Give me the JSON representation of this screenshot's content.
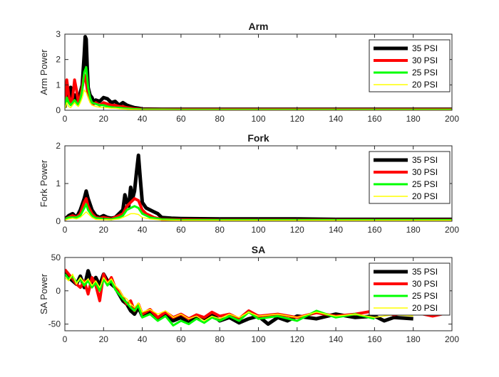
{
  "colors": {
    "35 PSI": "#000000",
    "30 PSI": "#ff0000",
    "25 PSI": "#00ff00",
    "20 PSI": "#ffff00"
  },
  "chart_data": [
    {
      "type": "line",
      "title": "Arm",
      "xlabel": "",
      "ylabel": "Arm Power",
      "xlim": [
        0,
        200
      ],
      "ylim": [
        0,
        3
      ],
      "xticks": [
        "0",
        "20",
        "40",
        "60",
        "80",
        "100",
        "120",
        "140",
        "160",
        "180",
        "200"
      ],
      "yticks": [
        "0",
        "1",
        "2",
        "3"
      ],
      "legend_position": "top-right",
      "series": [
        {
          "name": "35 PSI",
          "x": [
            0,
            1,
            2,
            3,
            4,
            5,
            6,
            7,
            8,
            9,
            10,
            10.5,
            11,
            11.5,
            12,
            13,
            14,
            15,
            16,
            18,
            20,
            22,
            24,
            26,
            28,
            30,
            32,
            34,
            36,
            38,
            40,
            50,
            60,
            80,
            100,
            120,
            140,
            160,
            180,
            200
          ],
          "y": [
            0.1,
            0.8,
            0.4,
            0.9,
            0.3,
            0.6,
            0.5,
            0.3,
            0.7,
            1.0,
            2.2,
            2.9,
            2.8,
            1.8,
            0.9,
            0.6,
            0.5,
            0.3,
            0.4,
            0.35,
            0.5,
            0.45,
            0.3,
            0.35,
            0.2,
            0.3,
            0.2,
            0.15,
            0.1,
            0.08,
            0.05,
            0.04,
            0.04,
            0.04,
            0.04,
            0.04,
            0.04,
            0.04,
            0.04,
            0.04
          ]
        },
        {
          "name": "30 PSI",
          "x": [
            0,
            1,
            2,
            3,
            4,
            5,
            6,
            7,
            8,
            9,
            10,
            11,
            12,
            13,
            14,
            15,
            16,
            18,
            20,
            22,
            24,
            26,
            28,
            30,
            32,
            34,
            36,
            40,
            50,
            60,
            80,
            100,
            120,
            140,
            160,
            180,
            200
          ],
          "y": [
            0.2,
            1.2,
            0.6,
            0.3,
            0.5,
            1.2,
            0.8,
            0.3,
            0.5,
            0.9,
            1.4,
            1.1,
            0.6,
            0.4,
            0.3,
            0.25,
            0.3,
            0.2,
            0.3,
            0.25,
            0.2,
            0.2,
            0.15,
            0.15,
            0.1,
            0.08,
            0.06,
            0.04,
            0.03,
            0.03,
            0.03,
            0.03,
            0.03,
            0.03,
            0.03,
            0.03,
            0.03
          ]
        },
        {
          "name": "25 PSI",
          "x": [
            0,
            1,
            2,
            3,
            4,
            5,
            6,
            7,
            8,
            9,
            10,
            11,
            12,
            13,
            14,
            16,
            18,
            20,
            22,
            24,
            26,
            28,
            30,
            35,
            40,
            60,
            80,
            100,
            120,
            140,
            160,
            180,
            200
          ],
          "y": [
            0.1,
            0.5,
            0.3,
            0.2,
            0.3,
            0.4,
            0.3,
            0.2,
            0.4,
            0.8,
            1.5,
            1.7,
            0.9,
            0.5,
            0.3,
            0.25,
            0.2,
            0.2,
            0.15,
            0.12,
            0.1,
            0.1,
            0.08,
            0.05,
            0.03,
            0.02,
            0.02,
            0.02,
            0.02,
            0.02,
            0.02,
            0.02,
            0.02
          ]
        },
        {
          "name": "20 PSI",
          "x": [
            0,
            1,
            2,
            3,
            4,
            5,
            6,
            7,
            8,
            9,
            10,
            11,
            12,
            13,
            14,
            16,
            18,
            20,
            22,
            24,
            26,
            28,
            30,
            35,
            40,
            60,
            80,
            100,
            120,
            140,
            160,
            180,
            200
          ],
          "y": [
            0.05,
            0.3,
            0.15,
            0.1,
            0.2,
            0.3,
            0.2,
            0.15,
            0.3,
            0.5,
            0.8,
            0.7,
            0.5,
            0.3,
            0.2,
            0.15,
            0.12,
            0.1,
            0.1,
            0.08,
            0.08,
            0.06,
            0.05,
            0.03,
            0.02,
            0.015,
            0.015,
            0.015,
            0.015,
            0.015,
            0.015,
            0.015,
            0.015
          ]
        }
      ]
    },
    {
      "type": "line",
      "title": "Fork",
      "xlabel": "",
      "ylabel": "Fork Power",
      "xlim": [
        0,
        200
      ],
      "ylim": [
        0,
        2
      ],
      "xticks": [
        "0",
        "20",
        "40",
        "60",
        "80",
        "100",
        "120",
        "140",
        "160",
        "180",
        "200"
      ],
      "yticks": [
        "0",
        "1",
        "2"
      ],
      "legend_position": "top-right",
      "series": [
        {
          "name": "35 PSI",
          "x": [
            0,
            2,
            4,
            6,
            8,
            10,
            11,
            12,
            14,
            16,
            18,
            20,
            22,
            24,
            26,
            28,
            30,
            31,
            32,
            33,
            34,
            35,
            36,
            37,
            38,
            39,
            40,
            42,
            44,
            46,
            48,
            50,
            55,
            60,
            80,
            100,
            120,
            140,
            160,
            180,
            200
          ],
          "y": [
            0.05,
            0.15,
            0.2,
            0.1,
            0.3,
            0.6,
            0.8,
            0.6,
            0.3,
            0.15,
            0.1,
            0.15,
            0.1,
            0.08,
            0.1,
            0.2,
            0.3,
            0.7,
            0.5,
            0.4,
            0.9,
            0.6,
            0.8,
            1.3,
            1.75,
            1.1,
            0.5,
            0.35,
            0.3,
            0.25,
            0.2,
            0.1,
            0.08,
            0.07,
            0.06,
            0.06,
            0.06,
            0.05,
            0.05,
            0.05,
            0.05
          ]
        },
        {
          "name": "30 PSI",
          "x": [
            0,
            2,
            4,
            6,
            8,
            10,
            11,
            12,
            14,
            16,
            18,
            20,
            24,
            28,
            30,
            32,
            34,
            36,
            38,
            40,
            42,
            44,
            46,
            50,
            60,
            80,
            100,
            120,
            140,
            160,
            180,
            200
          ],
          "y": [
            0.05,
            0.1,
            0.15,
            0.1,
            0.2,
            0.5,
            0.6,
            0.4,
            0.2,
            0.1,
            0.08,
            0.1,
            0.06,
            0.15,
            0.2,
            0.4,
            0.5,
            0.6,
            0.55,
            0.3,
            0.2,
            0.15,
            0.1,
            0.05,
            0.04,
            0.03,
            0.03,
            0.03,
            0.03,
            0.03,
            0.03,
            0.03
          ]
        },
        {
          "name": "25 PSI",
          "x": [
            0,
            2,
            4,
            6,
            8,
            10,
            11,
            12,
            14,
            16,
            20,
            24,
            28,
            30,
            32,
            34,
            36,
            38,
            40,
            44,
            50,
            60,
            80,
            100,
            120,
            140,
            160,
            180,
            200
          ],
          "y": [
            0.05,
            0.1,
            0.1,
            0.1,
            0.15,
            0.35,
            0.45,
            0.3,
            0.15,
            0.08,
            0.06,
            0.05,
            0.1,
            0.15,
            0.3,
            0.35,
            0.4,
            0.35,
            0.2,
            0.1,
            0.05,
            0.03,
            0.03,
            0.03,
            0.03,
            0.03,
            0.03,
            0.03,
            0.03
          ]
        },
        {
          "name": "20 PSI",
          "x": [
            0,
            2,
            4,
            6,
            8,
            10,
            11,
            12,
            14,
            16,
            20,
            24,
            28,
            30,
            32,
            34,
            36,
            38,
            40,
            44,
            50,
            60,
            80,
            100,
            120,
            140,
            160,
            180,
            200
          ],
          "y": [
            0.03,
            0.06,
            0.08,
            0.06,
            0.1,
            0.2,
            0.25,
            0.2,
            0.1,
            0.05,
            0.04,
            0.04,
            0.06,
            0.1,
            0.15,
            0.2,
            0.2,
            0.18,
            0.1,
            0.06,
            0.03,
            0.02,
            0.02,
            0.02,
            0.02,
            0.02,
            0.02,
            0.02,
            0.02
          ]
        }
      ]
    },
    {
      "type": "line",
      "title": "SA",
      "xlabel": "",
      "ylabel": "SA Power",
      "xlim": [
        0,
        200
      ],
      "ylim": [
        -60,
        50
      ],
      "xticks": [
        "0",
        "20",
        "40",
        "60",
        "80",
        "100",
        "120",
        "140",
        "160",
        "180",
        "200"
      ],
      "yticks": [
        "-50",
        "0",
        "50"
      ],
      "yticks_values": [
        -50,
        0,
        50
      ],
      "legend_position": "top-right",
      "series": [
        {
          "name": "35 PSI",
          "x": [
            0,
            2,
            4,
            6,
            8,
            10,
            12,
            14,
            16,
            18,
            20,
            22,
            24,
            26,
            28,
            30,
            32,
            34,
            36,
            38,
            40,
            44,
            48,
            52,
            56,
            60,
            64,
            68,
            72,
            76,
            80,
            85,
            90,
            95,
            100,
            105,
            110,
            115,
            120,
            130,
            140,
            150,
            160,
            165,
            170,
            180
          ],
          "y": [
            28,
            20,
            15,
            10,
            22,
            5,
            30,
            12,
            20,
            8,
            25,
            15,
            10,
            5,
            -5,
            -15,
            -20,
            -30,
            -35,
            -25,
            -38,
            -30,
            -42,
            -35,
            -45,
            -40,
            -48,
            -38,
            -42,
            -35,
            -45,
            -40,
            -48,
            -42,
            -38,
            -50,
            -40,
            -45,
            -38,
            -42,
            -35,
            -40,
            -38,
            -45,
            -40,
            -42
          ]
        },
        {
          "name": "30 PSI",
          "x": [
            0,
            2,
            4,
            6,
            8,
            10,
            12,
            14,
            16,
            18,
            20,
            22,
            24,
            26,
            28,
            30,
            32,
            34,
            36,
            38,
            40,
            44,
            48,
            52,
            56,
            60,
            64,
            68,
            72,
            76,
            80,
            85,
            90,
            95,
            100,
            110,
            120,
            130,
            140,
            150,
            160,
            170,
            180,
            190,
            195
          ],
          "y": [
            32,
            25,
            18,
            10,
            5,
            15,
            -5,
            20,
            8,
            -15,
            25,
            10,
            20,
            5,
            0,
            -10,
            -20,
            -15,
            -30,
            -20,
            -35,
            -28,
            -40,
            -32,
            -40,
            -35,
            -42,
            -36,
            -40,
            -32,
            -38,
            -35,
            -42,
            -30,
            -38,
            -35,
            -40,
            -33,
            -38,
            -35,
            -30,
            -36,
            -32,
            -38,
            -35
          ]
        },
        {
          "name": "25 PSI",
          "x": [
            0,
            2,
            4,
            6,
            8,
            10,
            12,
            14,
            16,
            18,
            20,
            22,
            24,
            26,
            28,
            30,
            32,
            34,
            36,
            38,
            40,
            44,
            48,
            52,
            56,
            60,
            64,
            68,
            72,
            76,
            80,
            85,
            90,
            95,
            100,
            110,
            120,
            130,
            140,
            150,
            160
          ],
          "y": [
            25,
            18,
            22,
            12,
            18,
            8,
            15,
            5,
            12,
            0,
            18,
            8,
            15,
            2,
            -5,
            -12,
            -18,
            -25,
            -30,
            -22,
            -40,
            -35,
            -45,
            -38,
            -52,
            -45,
            -50,
            -42,
            -48,
            -40,
            -45,
            -38,
            -45,
            -32,
            -42,
            -38,
            -45,
            -30,
            -40,
            -35,
            -42
          ]
        },
        {
          "name": "20 PSI",
          "x": [
            0,
            2,
            4,
            6,
            8,
            10,
            12,
            14,
            16,
            18,
            20,
            22,
            24,
            26,
            28,
            30,
            32,
            34,
            36,
            38,
            40,
            44,
            48,
            52,
            56,
            60,
            64,
            68,
            72,
            76,
            80,
            85,
            90,
            95,
            100,
            110,
            120,
            130,
            140,
            150,
            160,
            170,
            180
          ],
          "y": [
            20,
            15,
            25,
            10,
            20,
            12,
            18,
            8,
            15,
            5,
            20,
            12,
            18,
            8,
            2,
            -8,
            -12,
            -20,
            -25,
            -18,
            -32,
            -28,
            -35,
            -30,
            -40,
            -35,
            -42,
            -38,
            -45,
            -38,
            -42,
            -35,
            -40,
            -32,
            -38,
            -35,
            -40,
            -32,
            -38,
            -35,
            -40,
            -36,
            -38
          ]
        }
      ]
    }
  ]
}
